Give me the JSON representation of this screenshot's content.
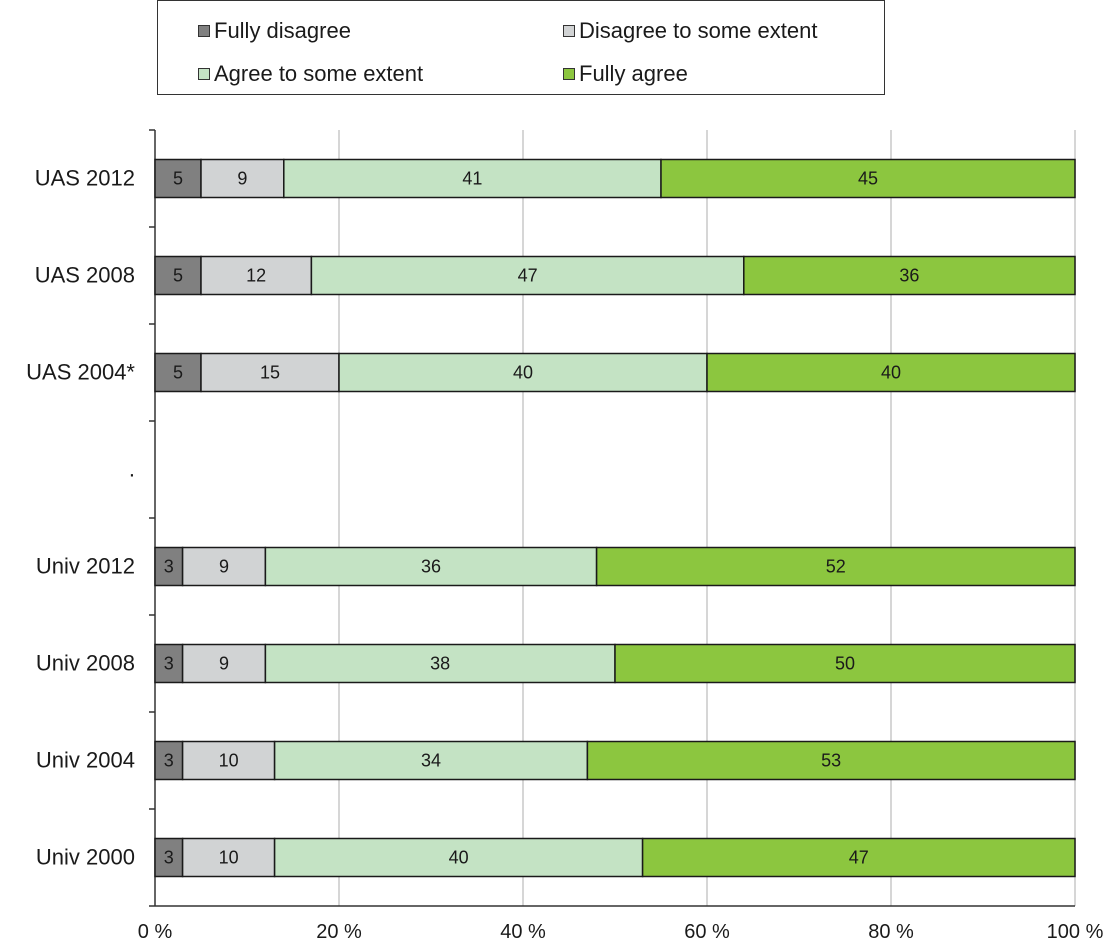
{
  "chart_data": {
    "type": "bar",
    "orientation": "horizontal",
    "stacked": true,
    "categories": [
      "UAS 2012",
      "UAS 2008",
      "UAS 2004*",
      ".",
      "Univ 2012",
      "Univ 2008",
      "Univ 2004",
      "Univ 2000"
    ],
    "series": [
      {
        "name": "Fully disagree",
        "color": "#808080",
        "values": [
          5,
          5,
          5,
          null,
          3,
          3,
          3,
          3
        ]
      },
      {
        "name": "Disagree to some extent",
        "color": "#d1d3d4",
        "values": [
          9,
          12,
          15,
          null,
          9,
          9,
          10,
          10
        ]
      },
      {
        "name": "Agree to some extent",
        "color": "#c4e3c4",
        "values": [
          41,
          47,
          40,
          null,
          36,
          38,
          34,
          40
        ]
      },
      {
        "name": "Fully agree",
        "color": "#8cc63f",
        "values": [
          45,
          36,
          40,
          null,
          52,
          50,
          53,
          47
        ]
      }
    ],
    "xticks": [
      "0 %",
      "20 %",
      "40 %",
      "60 %",
      "80 %",
      "100 %"
    ],
    "xlim": [
      0,
      100
    ],
    "grid": "vertical",
    "legend_position": "top",
    "title": "",
    "xlabel": "",
    "ylabel": ""
  }
}
